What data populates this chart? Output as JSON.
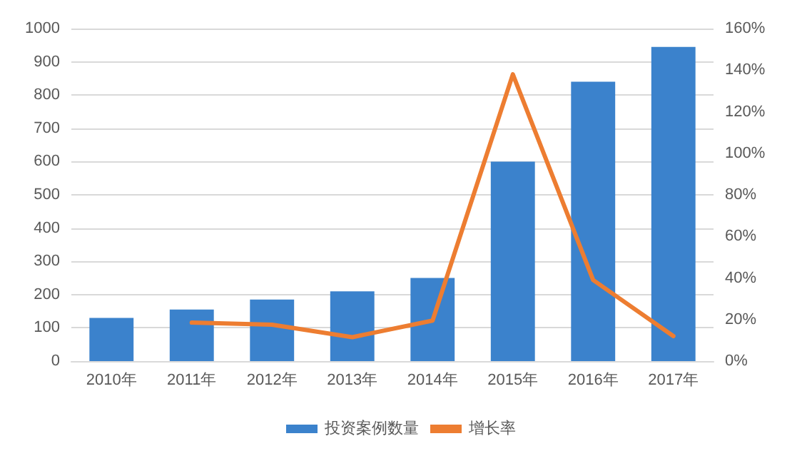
{
  "chart_data": {
    "type": "bar",
    "categories": [
      "2010年",
      "2011年",
      "2012年",
      "2013年",
      "2014年",
      "2015年",
      "2016年",
      "2017年"
    ],
    "series": [
      {
        "name": "投资案例数量",
        "color": "#3b82cc",
        "values": [
          130,
          155,
          185,
          210,
          250,
          600,
          840,
          945
        ]
      },
      {
        "name": "增长率",
        "type": "line",
        "axis": "y2",
        "color": "#ed7d31",
        "values": [
          null,
          18.5,
          17.5,
          11.5,
          19.5,
          138,
          39,
          12
        ]
      }
    ],
    "ylim": [
      0,
      1000
    ],
    "yticks": [
      0,
      100,
      200,
      300,
      400,
      500,
      600,
      700,
      800,
      900,
      1000
    ],
    "y2lim": [
      0,
      160
    ],
    "y2ticks": [
      {
        "value": 0,
        "label": "0%"
      },
      {
        "value": 20,
        "label": "20%"
      },
      {
        "value": 40,
        "label": "40%"
      },
      {
        "value": 60,
        "label": "60%"
      },
      {
        "value": 80,
        "label": "80%"
      },
      {
        "value": 100,
        "label": "100%"
      },
      {
        "value": 120,
        "label": "120%"
      },
      {
        "value": 140,
        "label": "140%"
      },
      {
        "value": 160,
        "label": "160%"
      }
    ],
    "grid": "y",
    "legend": "bottom",
    "marker": "none",
    "line_style": "solid"
  }
}
